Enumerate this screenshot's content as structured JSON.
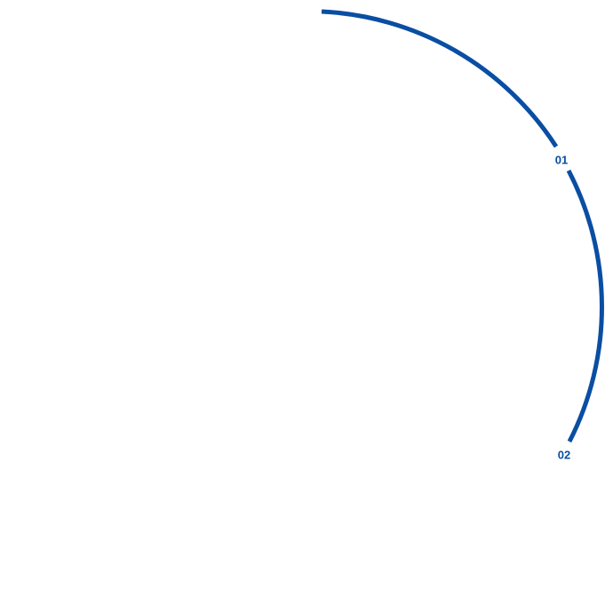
{
  "diagram": {
    "color": "#0a4ea3",
    "markers": [
      {
        "label": "01"
      },
      {
        "label": "02"
      }
    ]
  }
}
